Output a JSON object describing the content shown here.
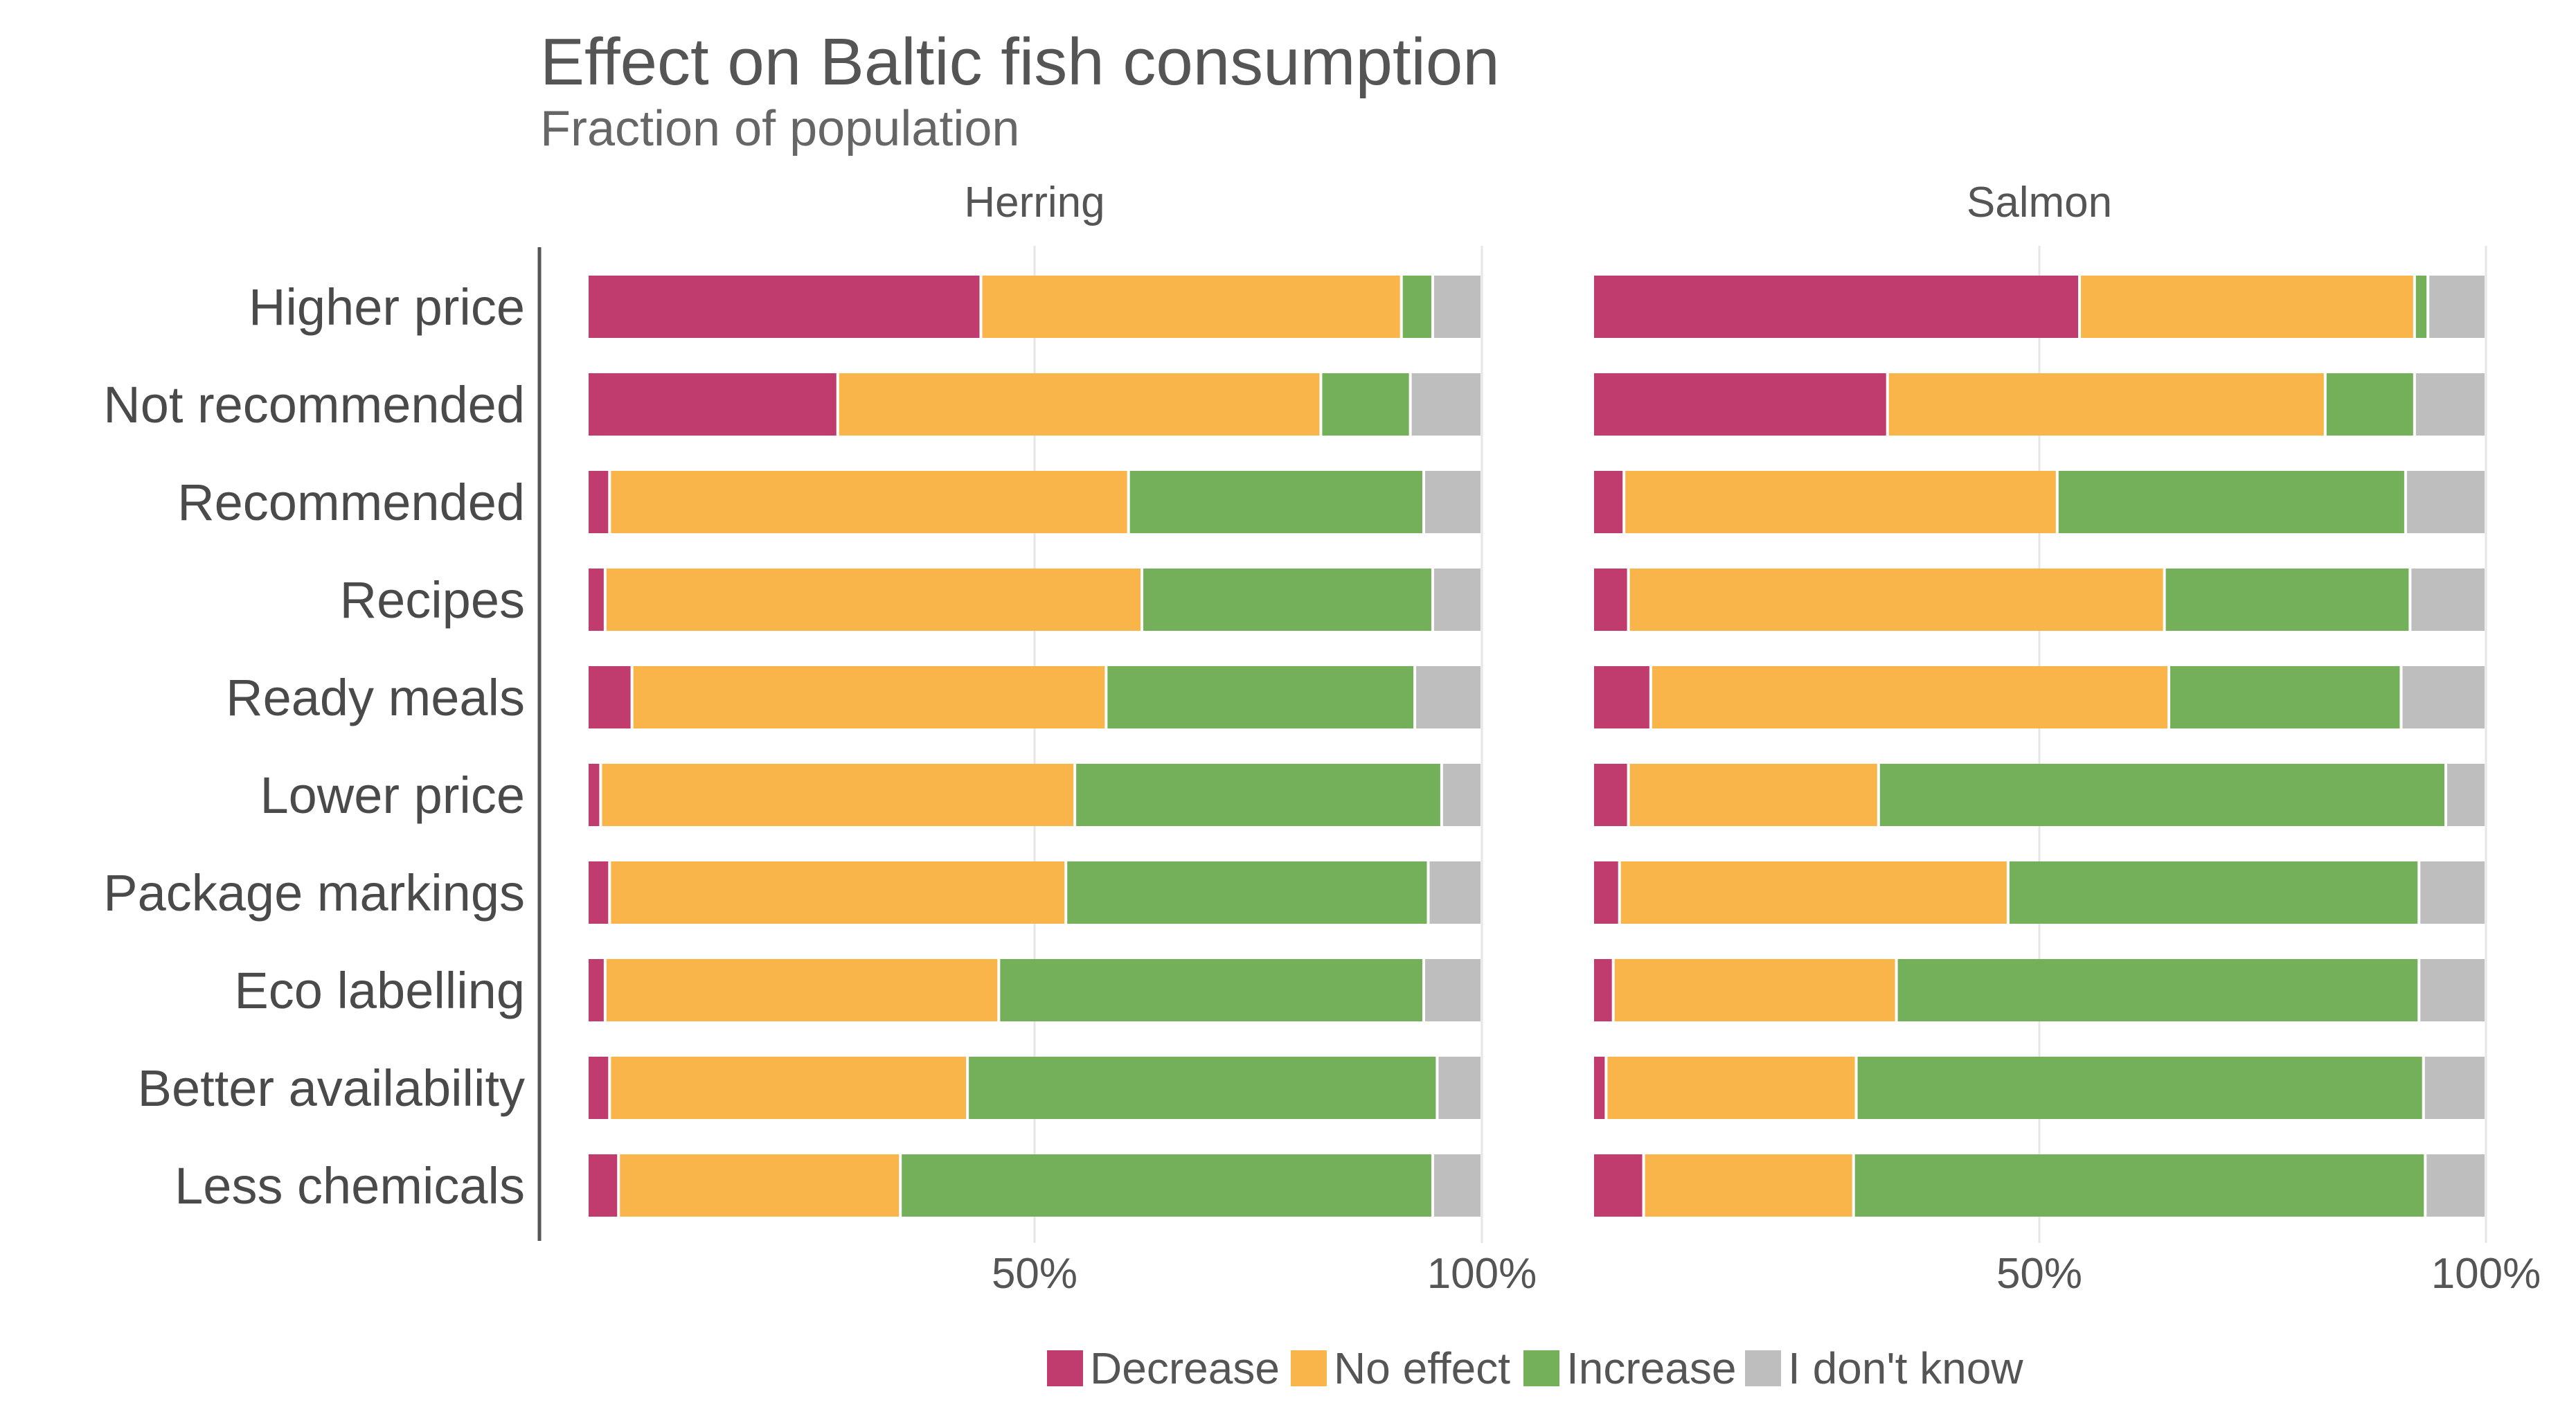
{
  "chart_data": {
    "type": "bar",
    "orientation": "horizontal",
    "stacked": true,
    "title": "Effect on Baltic fish consumption",
    "subtitle": "Fraction of population",
    "categories": [
      "Higher price",
      "Not recommended",
      "Recommended",
      "Recipes",
      "Ready meals",
      "Lower price",
      "Package markings",
      "Eco labelling",
      "Better availability",
      "Less chemicals"
    ],
    "tick_labels": [
      "50%",
      "100%"
    ],
    "xlim": [
      0,
      100
    ],
    "grid": true,
    "legend_position": "bottom",
    "legend": [
      {
        "name": "Decrease",
        "color": "#c03b6e"
      },
      {
        "name": "No effect",
        "color": "#f9b54a"
      },
      {
        "name": "Increase",
        "color": "#74af5a"
      },
      {
        "name": "I don't know",
        "color": "#bebebe"
      }
    ],
    "panels": [
      {
        "name": "Herring",
        "series": [
          {
            "name": "Decrease",
            "values": [
              44,
              28,
              2.5,
              2,
              5,
              1.5,
              2.5,
              2,
              2.5,
              3.5
            ]
          },
          {
            "name": "No effect",
            "values": [
              47,
              54,
              58,
              60,
              53,
              53,
              51,
              44,
              40,
              31.5
            ]
          },
          {
            "name": "Increase",
            "values": [
              3.5,
              10,
              33,
              32.5,
              34.5,
              41,
              40.5,
              47.5,
              52.5,
              59.5
            ]
          },
          {
            "name": "I don't know",
            "values": [
              5.5,
              8,
              6.5,
              5.5,
              7.5,
              4.5,
              6,
              6.5,
              5,
              5.5
            ]
          }
        ]
      },
      {
        "name": "Salmon",
        "series": [
          {
            "name": "Decrease",
            "values": [
              54.5,
              33,
              3.5,
              4,
              6.5,
              4,
              3,
              2.3,
              1.5,
              5.7
            ]
          },
          {
            "name": "No effect",
            "values": [
              37.5,
              49,
              48.5,
              60,
              58,
              28,
              43.5,
              31.7,
              28,
              23.5
            ]
          },
          {
            "name": "Increase",
            "values": [
              1.5,
              10,
              39,
              27.5,
              26,
              63.5,
              46,
              58.5,
              63.5,
              64
            ]
          },
          {
            "name": "I don't know",
            "values": [
              6.5,
              8,
              9,
              8.5,
              9.5,
              4.5,
              7.5,
              7.5,
              7,
              6.8
            ]
          }
        ]
      }
    ]
  }
}
